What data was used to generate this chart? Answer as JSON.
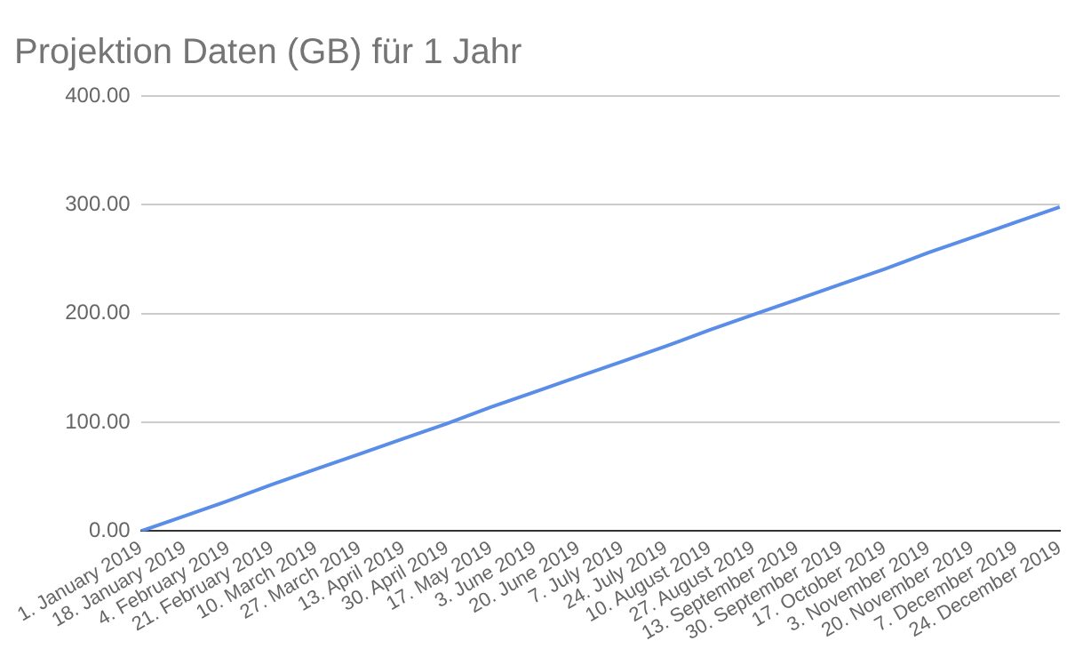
{
  "chart_data": {
    "type": "line",
    "title": "Projektion Daten (GB) für 1 Jahr",
    "categories": [
      "1. January 2019",
      "18. January 2019",
      "4. February 2019",
      "21. February 2019",
      "10. March 2019",
      "27. March 2019",
      "13. April 2019",
      "30. April 2019",
      "17. May 2019",
      "3. June 2019",
      "20. June 2019",
      "7. July 2019",
      "24. July 2019",
      "10. August 2019",
      "27. August 2019",
      "13. September 2019",
      "30. September 2019",
      "17. October 2019",
      "3. November 2019",
      "20. November 2019",
      "7. December 2019",
      "24. December 2019"
    ],
    "series": [
      {
        "color": "#5a8de8",
        "values": [
          0,
          14,
          28,
          43,
          57,
          71,
          85,
          99,
          114,
          128,
          142,
          156,
          170,
          185,
          199,
          213,
          227,
          241,
          256,
          270,
          284,
          298
        ]
      }
    ],
    "ylim": [
      0,
      400
    ],
    "yticks": [
      {
        "value": 0,
        "label": "0.00"
      },
      {
        "value": 100,
        "label": "100.00"
      },
      {
        "value": 200,
        "label": "200.00"
      },
      {
        "value": 300,
        "label": "300.00"
      },
      {
        "value": 400,
        "label": "400.00"
      }
    ],
    "grid": "y",
    "legend": false,
    "marker": "none",
    "line_style": "solid"
  }
}
